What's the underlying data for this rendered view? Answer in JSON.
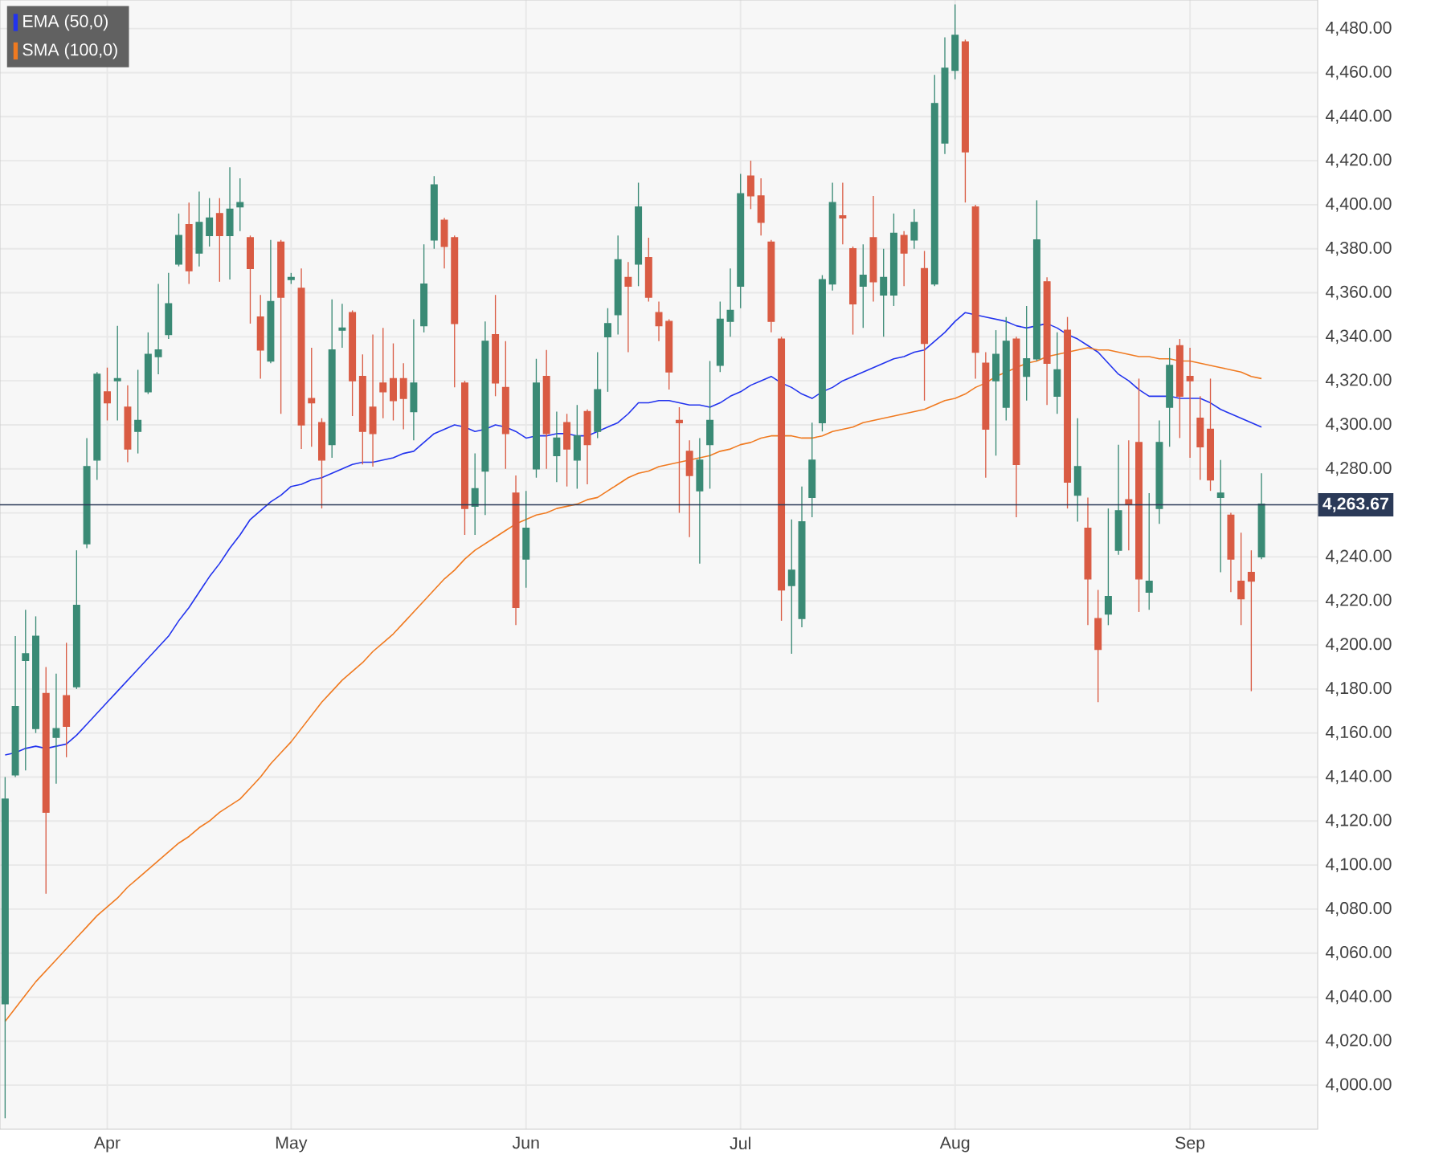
{
  "chart_data": {
    "type": "candlestick",
    "categories": [
      null,
      null,
      null,
      null,
      null,
      null,
      null,
      null,
      null,
      null,
      "Apr",
      null,
      null,
      null,
      null,
      null,
      null,
      null,
      null,
      null,
      null,
      null,
      null,
      null,
      null,
      null,
      null,
      null,
      "May",
      null,
      null,
      null,
      null,
      null,
      null,
      null,
      null,
      null,
      null,
      null,
      null,
      null,
      null,
      null,
      null,
      null,
      null,
      null,
      null,
      null,
      null,
      "Jun",
      null,
      null,
      null,
      null,
      null,
      null,
      null,
      null,
      null,
      null,
      null,
      null,
      null,
      null,
      null,
      null,
      null,
      null,
      null,
      null,
      "Jul",
      null,
      null,
      null,
      null,
      null,
      null,
      null,
      null,
      null,
      null,
      null,
      null,
      null,
      null,
      null,
      null,
      null,
      null,
      null,
      null,
      "Aug",
      null,
      null,
      null,
      null,
      null,
      null,
      null,
      null,
      null,
      null,
      null,
      null,
      null,
      null,
      null,
      null,
      null,
      null,
      null,
      null,
      null,
      null,
      "Sep",
      null,
      null,
      null,
      null,
      null,
      null,
      null
    ],
    "ohlc": [
      [
        4037,
        4140,
        3985,
        4130
      ],
      [
        4141,
        4204,
        4140,
        4172
      ],
      [
        4193,
        4216,
        4143,
        4196
      ],
      [
        4162,
        4213,
        4160,
        4204
      ],
      [
        4178,
        4190,
        4087,
        4124
      ],
      [
        4158,
        4187,
        4137,
        4162
      ],
      [
        4177,
        4201,
        4149,
        4163
      ],
      [
        4181,
        4243,
        4180,
        4218
      ],
      [
        4246,
        4294,
        4244,
        4281
      ],
      [
        4284,
        4324,
        4275,
        4323
      ],
      [
        4315,
        4326,
        4302,
        4310
      ],
      [
        4320,
        4345,
        4302,
        4321
      ],
      [
        4308,
        4318,
        4283,
        4289
      ],
      [
        4297,
        4325,
        4287,
        4302
      ],
      [
        4315,
        4342,
        4314,
        4332
      ],
      [
        4331,
        4364,
        4323,
        4334
      ],
      [
        4341,
        4369,
        4339,
        4355
      ],
      [
        4373,
        4396,
        4372,
        4386
      ],
      [
        4391,
        4401,
        4364,
        4370
      ],
      [
        4378,
        4406,
        4372,
        4392
      ],
      [
        4386,
        4403,
        4381,
        4394
      ],
      [
        4396,
        4403,
        4365,
        4386
      ],
      [
        4386,
        4417,
        4366,
        4398
      ],
      [
        4399,
        4412,
        4388,
        4401
      ],
      [
        4385,
        4386,
        4346,
        4371
      ],
      [
        4349,
        4359,
        4321,
        4334
      ],
      [
        4329,
        4384,
        4328,
        4356
      ],
      [
        4383,
        4384,
        4305,
        4358
      ],
      [
        4366,
        4369,
        4364,
        4367
      ],
      [
        4362,
        4371,
        4289,
        4300
      ],
      [
        4312,
        4335,
        4290,
        4310
      ],
      [
        4301,
        4303,
        4262,
        4284
      ],
      [
        4291,
        4357,
        4285,
        4334
      ],
      [
        4343,
        4355,
        4335,
        4344
      ],
      [
        4351,
        4352,
        4304,
        4320
      ],
      [
        4322,
        4332,
        4282,
        4297
      ],
      [
        4308,
        4341,
        4281,
        4296
      ],
      [
        4319,
        4344,
        4303,
        4315
      ],
      [
        4321,
        4337,
        4302,
        4311
      ],
      [
        4321,
        4328,
        4298,
        4312
      ],
      [
        4306,
        4348,
        4293,
        4319
      ],
      [
        4345,
        4382,
        4342,
        4364
      ],
      [
        4384,
        4413,
        4380,
        4409
      ],
      [
        4393,
        4394,
        4371,
        4381
      ],
      [
        4385,
        4386,
        4317,
        4346
      ],
      [
        4319,
        4320,
        4250,
        4262
      ],
      [
        4263,
        4287,
        4250,
        4271
      ],
      [
        4279,
        4347,
        4259,
        4338
      ],
      [
        4341,
        4359,
        4313,
        4319
      ],
      [
        4317,
        4338,
        4280,
        4296
      ],
      [
        4269,
        4277,
        4209,
        4217
      ],
      [
        4239,
        4270,
        4226,
        4253
      ],
      [
        4280,
        4330,
        4276,
        4319
      ],
      [
        4322,
        4334,
        4280,
        4296
      ],
      [
        4286,
        4306,
        4274,
        4294
      ],
      [
        4301,
        4305,
        4272,
        4289
      ],
      [
        4284,
        4309,
        4271,
        4295
      ],
      [
        4306,
        4307,
        4273,
        4291
      ],
      [
        4297,
        4333,
        4294,
        4316
      ],
      [
        4340,
        4353,
        4315,
        4346
      ],
      [
        4350,
        4386,
        4341,
        4375
      ],
      [
        4367,
        4374,
        4333,
        4363
      ],
      [
        4373,
        4410,
        4363,
        4399
      ],
      [
        4376,
        4385,
        4356,
        4358
      ],
      [
        4351,
        4356,
        4338,
        4345
      ],
      [
        4347,
        4348,
        4316,
        4324
      ],
      [
        4302,
        4308,
        4260,
        4301
      ],
      [
        4288,
        4293,
        4249,
        4277
      ],
      [
        4270,
        4294,
        4237,
        4284
      ],
      [
        4291,
        4329,
        4271,
        4302
      ],
      [
        4327,
        4356,
        4324,
        4348
      ],
      [
        4347,
        4371,
        4340,
        4352
      ],
      [
        4363,
        4414,
        4353,
        4405
      ],
      [
        4413,
        4420,
        4398,
        4404
      ],
      [
        4404,
        4412,
        4386,
        4392
      ],
      [
        4383,
        4384,
        4342,
        4347
      ],
      [
        4339,
        4340,
        4211,
        4225
      ],
      [
        4227,
        4257,
        4196,
        4234
      ],
      [
        4212,
        4272,
        4208,
        4256
      ],
      [
        4267,
        4301,
        4258,
        4284
      ],
      [
        4301,
        4368,
        4297,
        4366
      ],
      [
        4364,
        4410,
        4361,
        4401
      ],
      [
        4395,
        4410,
        4382,
        4394
      ],
      [
        4380,
        4381,
        4341,
        4355
      ],
      [
        4363,
        4382,
        4344,
        4368
      ],
      [
        4385,
        4404,
        4356,
        4365
      ],
      [
        4359,
        4380,
        4340,
        4367
      ],
      [
        4359,
        4396,
        4354,
        4387
      ],
      [
        4386,
        4388,
        4363,
        4378
      ],
      [
        4384,
        4398,
        4380,
        4392
      ],
      [
        4371,
        4379,
        4311,
        4337
      ],
      [
        4364,
        4459,
        4363,
        4446
      ],
      [
        4428,
        4476,
        4423,
        4462
      ],
      [
        4461,
        4491,
        4457,
        4477
      ],
      [
        4474,
        4475,
        4401,
        4424
      ],
      [
        4399,
        4400,
        4321,
        4333
      ],
      [
        4328,
        4333,
        4276,
        4298
      ],
      [
        4320,
        4343,
        4286,
        4332
      ],
      [
        4308,
        4349,
        4302,
        4338
      ],
      [
        4339,
        4340,
        4258,
        4282
      ],
      [
        4322,
        4354,
        4311,
        4330
      ],
      [
        4330,
        4402,
        4329,
        4384
      ],
      [
        4365,
        4367,
        4309,
        4328
      ],
      [
        4313,
        4342,
        4305,
        4325
      ],
      [
        4343,
        4349,
        4262,
        4274
      ],
      [
        4268,
        4303,
        4256,
        4281
      ],
      [
        4253,
        4267,
        4209,
        4230
      ],
      [
        4212,
        4225,
        4174,
        4198
      ],
      [
        4214,
        4262,
        4209,
        4222
      ],
      [
        4243,
        4291,
        4241,
        4261
      ],
      [
        4266,
        4293,
        4243,
        4264
      ],
      [
        4292,
        4321,
        4215,
        4230
      ],
      [
        4224,
        4269,
        4216,
        4229
      ],
      [
        4262,
        4302,
        4255,
        4292
      ],
      [
        4308,
        4335,
        4290,
        4327
      ],
      [
        4336,
        4339,
        4294,
        4313
      ],
      [
        4322,
        4335,
        4285,
        4320
      ],
      [
        4303,
        4313,
        4275,
        4290
      ],
      [
        4298,
        4321,
        4270,
        4275
      ],
      [
        4267,
        4284,
        4233,
        4269
      ],
      [
        4259,
        4260,
        4224,
        4239
      ],
      [
        4229,
        4251,
        4209,
        4221
      ],
      [
        4233,
        4243,
        4179,
        4229
      ],
      [
        4240,
        4278,
        4239,
        4264
      ]
    ],
    "series": [
      {
        "name": "EMA (50,0)",
        "type": "line",
        "color": "#2233ee",
        "values": [
          4150,
          4151,
          4153,
          4154,
          4153,
          4154,
          4155,
          4159,
          4164,
          4169,
          4174,
          4179,
          4184,
          4189,
          4194,
          4199,
          4204,
          4211,
          4217,
          4224,
          4231,
          4237,
          4244,
          4250,
          4257,
          4261,
          4265,
          4268,
          4272,
          4273,
          4275,
          4276,
          4278,
          4280,
          4282,
          4283,
          4283,
          4284,
          4285,
          4287,
          4288,
          4292,
          4296,
          4298,
          4300,
          4299,
          4297,
          4298,
          4300,
          4299,
          4297,
          4294,
          4295,
          4295,
          4296,
          4296,
          4295,
          4295,
          4297,
          4299,
          4301,
          4305,
          4310,
          4310,
          4311,
          4311,
          4310,
          4309,
          4309,
          4308,
          4310,
          4313,
          4315,
          4318,
          4320,
          4322,
          4319,
          4317,
          4314,
          4312,
          4315,
          4317,
          4320,
          4322,
          4324,
          4326,
          4328,
          4330,
          4331,
          4333,
          4334,
          4338,
          4342,
          4347,
          4351,
          4350,
          4349,
          4348,
          4347,
          4345,
          4344,
          4345,
          4346,
          4344,
          4341,
          4339,
          4336,
          4333,
          4328,
          4323,
          4320,
          4316,
          4313,
          4313,
          4313,
          4312,
          4312,
          4312,
          4310,
          4307,
          4305,
          4303,
          4301,
          4299
        ]
      },
      {
        "name": "SMA (100,0)",
        "type": "line",
        "color": "#f07a20",
        "values": [
          4029,
          4035,
          4041,
          4047,
          4052,
          4057,
          4062,
          4067,
          4072,
          4077,
          4081,
          4085,
          4090,
          4094,
          4098,
          4102,
          4106,
          4110,
          4113,
          4117,
          4120,
          4124,
          4127,
          4130,
          4135,
          4140,
          4146,
          4151,
          4156,
          4162,
          4168,
          4174,
          4179,
          4184,
          4188,
          4192,
          4197,
          4201,
          4205,
          4210,
          4215,
          4220,
          4225,
          4230,
          4234,
          4239,
          4243,
          4246,
          4249,
          4252,
          4255,
          4257,
          4259,
          4260,
          4262,
          4263,
          4264,
          4266,
          4267,
          4270,
          4273,
          4276,
          4278,
          4279,
          4281,
          4282,
          4283,
          4284,
          4285,
          4286,
          4288,
          4289,
          4291,
          4292,
          4294,
          4295,
          4295,
          4295,
          4294,
          4294,
          4295,
          4297,
          4298,
          4299,
          4301,
          4302,
          4303,
          4304,
          4305,
          4306,
          4307,
          4309,
          4311,
          4312,
          4314,
          4317,
          4319,
          4322,
          4324,
          4326,
          4328,
          4329,
          4331,
          4332,
          4333,
          4334,
          4335,
          4334,
          4334,
          4333,
          4332,
          4331,
          4331,
          4330,
          4330,
          4329,
          4329,
          4328,
          4327,
          4326,
          4325,
          4324,
          4322,
          4321
        ]
      }
    ],
    "ylim": [
      3980,
      4493
    ],
    "yticks": [
      {
        "value": 4000,
        "label": "4,000.00"
      },
      {
        "value": 4020,
        "label": "4,020.00"
      },
      {
        "value": 4040,
        "label": "4,040.00"
      },
      {
        "value": 4060,
        "label": "4,060.00"
      },
      {
        "value": 4080,
        "label": "4,080.00"
      },
      {
        "value": 4100,
        "label": "4,100.00"
      },
      {
        "value": 4120,
        "label": "4,120.00"
      },
      {
        "value": 4140,
        "label": "4,140.00"
      },
      {
        "value": 4160,
        "label": "4,160.00"
      },
      {
        "value": 4180,
        "label": "4,180.00"
      },
      {
        "value": 4200,
        "label": "4,200.00"
      },
      {
        "value": 4220,
        "label": "4,220.00"
      },
      {
        "value": 4240,
        "label": "4,240.00"
      },
      {
        "value": 4260,
        "label": null
      },
      {
        "value": 4280,
        "label": "4,280.00"
      },
      {
        "value": 4300,
        "label": "4,300.00"
      },
      {
        "value": 4320,
        "label": "4,320.00"
      },
      {
        "value": 4340,
        "label": "4,340.00"
      },
      {
        "value": 4360,
        "label": "4,360.00"
      },
      {
        "value": 4380,
        "label": "4,380.00"
      },
      {
        "value": 4400,
        "label": "4,400.00"
      },
      {
        "value": 4420,
        "label": "4,420.00"
      },
      {
        "value": 4440,
        "label": "4,440.00"
      },
      {
        "value": 4460,
        "label": "4,460.00"
      },
      {
        "value": 4480,
        "label": "4,480.00"
      }
    ],
    "ref_lines": [
      {
        "axis": "y",
        "value": 4263.67,
        "label": "4,263.67",
        "color": "#2b3a58"
      }
    ],
    "grid": true,
    "legend": "top left"
  }
}
